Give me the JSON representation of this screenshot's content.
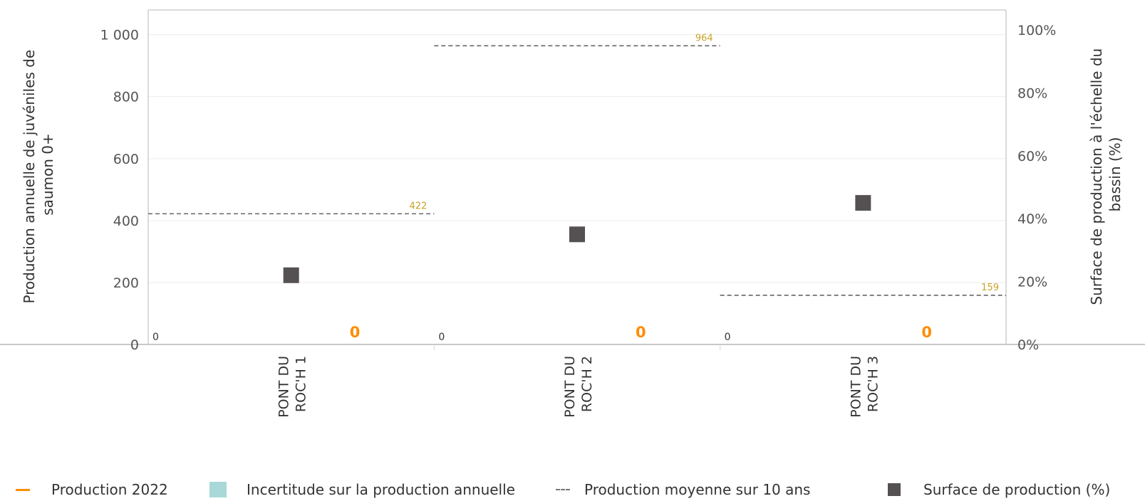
{
  "chart_data": {
    "type": "scatter",
    "y_left": {
      "label": "Production annuelle de juvéniles de saumon 0+",
      "ylim": [
        0,
        1000
      ],
      "ticks": [
        "0",
        "200",
        "400",
        "600",
        "800",
        "1 000"
      ],
      "tick_values": [
        0,
        200,
        400,
        600,
        800,
        1000
      ]
    },
    "y_right": {
      "label": "Surface de production à l'échelle du bassin (%)",
      "ylim": [
        0,
        100
      ],
      "ticks": [
        "0%",
        "20%",
        "40%",
        "60%",
        "80%",
        "100%"
      ],
      "tick_values": [
        0,
        20,
        40,
        60,
        80,
        100
      ]
    },
    "categories": [
      {
        "line1": "PONT DU",
        "line2": "ROC'H 1"
      },
      {
        "line1": "PONT DU",
        "line2": "ROC'H 2"
      },
      {
        "line1": "PONT DU",
        "line2": "ROC'H 3"
      }
    ],
    "series": [
      {
        "name": "Production 2022",
        "values": [
          0,
          0,
          0
        ],
        "labels": [
          "0",
          "0",
          "0"
        ],
        "color": "#ff8c00"
      },
      {
        "name": "Incertitude sur la production annuelle",
        "lower_labels": [
          "0",
          "0",
          "0"
        ],
        "color": "#a8d8d8"
      },
      {
        "name": "Production moyenne sur 10 ans",
        "values": [
          422,
          964,
          159
        ],
        "labels": [
          "422",
          "964",
          "159"
        ],
        "color": "#555555"
      },
      {
        "name": "Surface de production (%)",
        "values": [
          22,
          35,
          45
        ],
        "color": "#555052"
      }
    ],
    "grid": true,
    "legend_position": "bottom"
  }
}
